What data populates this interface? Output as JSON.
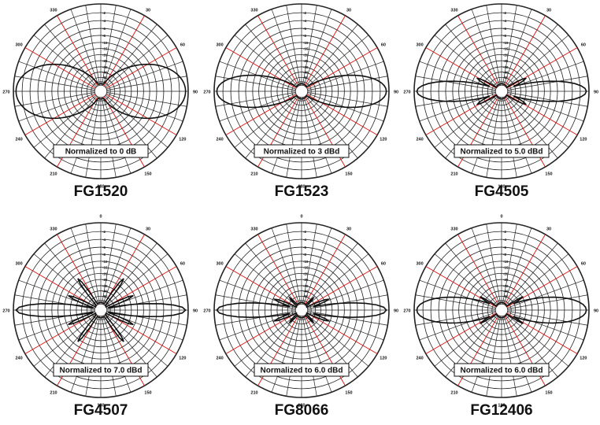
{
  "tick_scale": [
    "-2",
    "-4",
    "-6",
    "-8",
    "-10",
    "-15",
    "-20",
    "-25",
    "-30",
    "-40",
    "-50"
  ],
  "angle_labels": [
    "0",
    "30",
    "60",
    "90",
    "120",
    "150",
    "180",
    "210",
    "240",
    "270",
    "300",
    "330"
  ],
  "colors": {
    "grid": "#222222",
    "accent_spoke": "#e01010",
    "pattern": "#111111"
  },
  "antennas": [
    {
      "id": "FG1520",
      "name": "FG1520",
      "note": "Normalized to 0 dB",
      "pattern": {
        "lobes": 2,
        "main_width": 0.78,
        "side_lobes": []
      }
    },
    {
      "id": "FG1523",
      "name": "FG1523",
      "note": "Normalized to 3 dBd",
      "pattern": {
        "lobes": 2,
        "main_width": 0.45,
        "side_lobes": [
          {
            "ang": 10,
            "w": 0.15,
            "h": 0.26
          }
        ]
      }
    },
    {
      "id": "FG4505",
      "name": "FG4505",
      "note": "Normalized to 5.0 dBd",
      "pattern": {
        "lobes": 2,
        "main_width": 0.28,
        "side_lobes": [
          {
            "ang": 28,
            "w": 0.12,
            "h": 0.32
          }
        ]
      }
    },
    {
      "id": "FG4507",
      "name": "FG4507",
      "note": "Normalized to 7.0 dBd",
      "pattern": {
        "lobes": 2,
        "main_width": 0.18,
        "side_lobes": [
          {
            "ang": 24,
            "w": 0.09,
            "h": 0.42
          },
          {
            "ang": 54,
            "w": 0.09,
            "h": 0.46
          }
        ]
      }
    },
    {
      "id": "FG8066",
      "name": "FG8066",
      "note": "Normalized to 6.0 dBd",
      "pattern": {
        "lobes": 2,
        "main_width": 0.2,
        "side_lobes": [
          {
            "ang": 22,
            "w": 0.1,
            "h": 0.34
          },
          {
            "ang": 46,
            "w": 0.1,
            "h": 0.2
          }
        ]
      }
    },
    {
      "id": "FG12406",
      "name": "FG12406",
      "note": "Normalized to 6.0 dBd",
      "pattern": {
        "lobes": 2,
        "main_width": 0.36,
        "side_lobes": [
          {
            "ang": 14,
            "w": 0.08,
            "h": 0.5
          },
          {
            "ang": 32,
            "w": 0.07,
            "h": 0.3
          }
        ]
      }
    }
  ]
}
